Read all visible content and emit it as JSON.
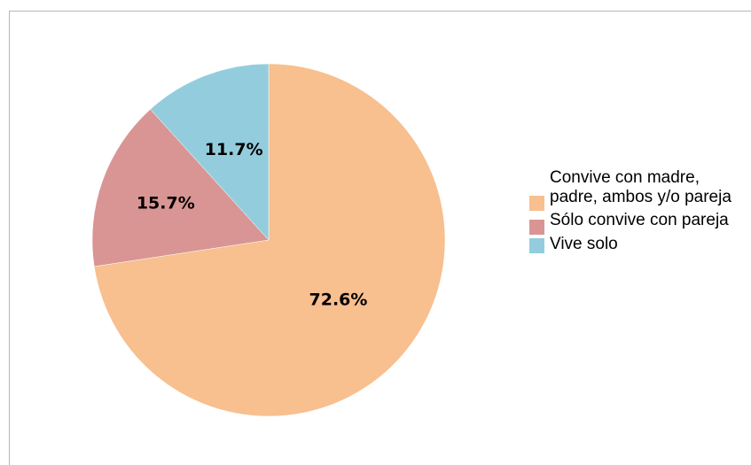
{
  "chart_data": {
    "type": "pie",
    "title": "",
    "slices": [
      {
        "label": "Convive con madre, padre, ambos y/o pareja",
        "value": 72.6,
        "display": "72.6%",
        "color": "#f8bf8f"
      },
      {
        "label": "Sólo convive con pareja",
        "value": 15.7,
        "display": "15.7%",
        "color": "#d99594"
      },
      {
        "label": "Vive solo",
        "value": 11.7,
        "display": "11.7%",
        "color": "#93cddd"
      }
    ],
    "legend_position": "right"
  }
}
